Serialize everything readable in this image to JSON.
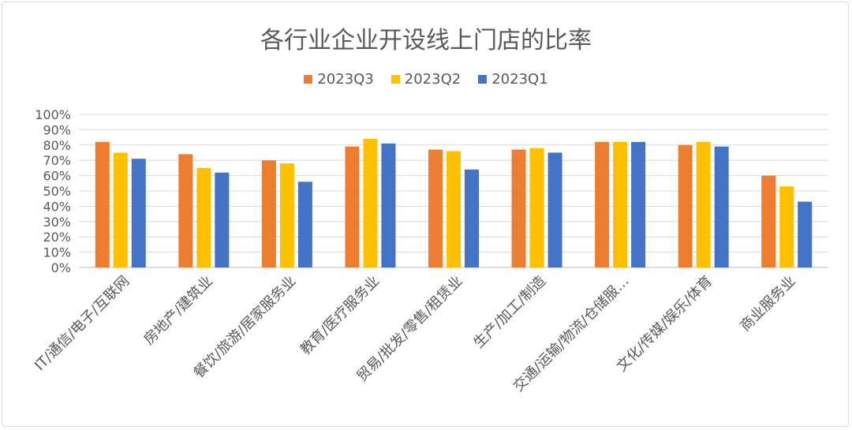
{
  "chart_data": {
    "type": "bar",
    "title": "各行业企业开设线上门店的比率",
    "categories": [
      "IT/通信/电子/互联网",
      "房地产/建筑业",
      "餐饮/旅游/居家服务业",
      "教育/医疗服务业",
      "贸易/批发/零售/租赁业",
      "生产/加工/制造",
      "交通/运输/物流/仓储服…",
      "文化/传媒/娱乐/体育",
      "商业服务业"
    ],
    "series": [
      {
        "name": "2023Q3",
        "color": "#ED7D31",
        "values": [
          82,
          74,
          70,
          79,
          77,
          77,
          82,
          80,
          60
        ]
      },
      {
        "name": "2023Q2",
        "color": "#FFC000",
        "values": [
          75,
          65,
          68,
          84,
          76,
          78,
          82,
          82,
          53
        ]
      },
      {
        "name": "2023Q1",
        "color": "#4472C4",
        "values": [
          71,
          62,
          56,
          81,
          64,
          75,
          82,
          79,
          43
        ]
      }
    ],
    "ylim": [
      0,
      100
    ],
    "yticks": [
      "0%",
      "10%",
      "20%",
      "30%",
      "40%",
      "50%",
      "60%",
      "70%",
      "80%",
      "90%",
      "100%"
    ],
    "grid": true,
    "legend_position": "top"
  }
}
